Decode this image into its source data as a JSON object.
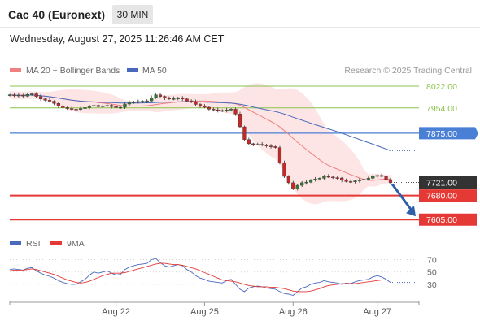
{
  "header": {
    "title": "Cac 40 (Euronext)",
    "interval": "30 MIN",
    "datetime": "Wednesday, August 27, 2025 11:26:46 AM CET"
  },
  "legend": {
    "bollinger": "MA 20 + Bollinger Bands",
    "ma50": "MA 50",
    "rsi": "RSI",
    "rsi_ma": "9MA",
    "credit": "Research © 2025 Trading Central"
  },
  "colors": {
    "bullish": "#2e7d32",
    "bearish": "#c62828",
    "candle_wick": "#333333",
    "ma20": "#f08080",
    "bollinger_fill": "#fde0e0",
    "ma50": "#4a69bd",
    "resistance_green": "#8bc34a",
    "level_blue": "#4a7fd6",
    "support_red": "#e53935",
    "current_price_box": "#333333",
    "forecast_arrow": "#2f5fa8",
    "rsi_line": "#4a69bd",
    "rsi_ma_line": "#e53935"
  },
  "chart_data": [
    {
      "type": "candlestick",
      "title": "",
      "x_ticks": [
        "Aug 22",
        "Aug 25",
        "Aug 26",
        "Aug 27"
      ],
      "ylim": [
        7575,
        8050
      ],
      "levels": [
        {
          "value": 8022.0,
          "label": "8022.00",
          "style": "green-line",
          "color": "#8bc34a"
        },
        {
          "value": 7954.0,
          "label": "7954.00",
          "style": "green-line",
          "color": "#8bc34a"
        },
        {
          "value": 7875.0,
          "label": "7875.00",
          "style": "blue-box",
          "color": "#4a7fd6"
        },
        {
          "value": 7721.0,
          "label": "7721.00",
          "style": "current-price",
          "color": "#333333"
        },
        {
          "value": 7680.0,
          "label": "7680.00",
          "style": "red-box",
          "color": "#e53935"
        },
        {
          "value": 7605.0,
          "label": "7605.00",
          "style": "red-box",
          "color": "#e53935"
        }
      ],
      "forecast": {
        "from": 7721,
        "to": 7605
      },
      "close": [
        7995,
        7992,
        7994,
        7991,
        7996,
        7998,
        7990,
        7982,
        7978,
        7975,
        7968,
        7960,
        7955,
        7952,
        7950,
        7949,
        7952,
        7955,
        7960,
        7962,
        7958,
        7960,
        7962,
        7958,
        7955,
        7956,
        7966,
        7970,
        7972,
        7974,
        7975,
        7976,
        7986,
        7995,
        7990,
        7985,
        7982,
        7983,
        7985,
        7982,
        7976,
        7973,
        7965,
        7960,
        7956,
        7950,
        7948,
        7946,
        7944,
        7948,
        7950,
        7935,
        7895,
        7855,
        7842,
        7840,
        7840,
        7838,
        7835,
        7833,
        7830,
        7782,
        7740,
        7720,
        7700,
        7712,
        7720,
        7722,
        7728,
        7732,
        7734,
        7740,
        7738,
        7736,
        7735,
        7728,
        7724,
        7723,
        7726,
        7729,
        7731,
        7734,
        7740,
        7743,
        7740,
        7730,
        7720
      ]
    },
    {
      "type": "line",
      "title": "",
      "ylim": [
        10,
        80
      ],
      "y_ticks": [
        70,
        50,
        30
      ],
      "series": [
        {
          "name": "RSI",
          "values": [
            54,
            55,
            54,
            53,
            56,
            57,
            52,
            48,
            45,
            43,
            40,
            36,
            33,
            31,
            30,
            30,
            34,
            38,
            45,
            50,
            48,
            50,
            52,
            48,
            45,
            46,
            54,
            58,
            60,
            62,
            63,
            64,
            70,
            72,
            65,
            60,
            58,
            60,
            62,
            60,
            54,
            50,
            44,
            40,
            38,
            35,
            34,
            33,
            32,
            36,
            38,
            30,
            22,
            18,
            24,
            26,
            27,
            26,
            24,
            23,
            22,
            18,
            15,
            14,
            12,
            18,
            24,
            26,
            30,
            32,
            33,
            36,
            34,
            33,
            32,
            30,
            32,
            31,
            34,
            36,
            37,
            38,
            42,
            44,
            42,
            38,
            33
          ]
        },
        {
          "name": "9MA",
          "values": [
            52,
            53,
            53,
            53,
            54,
            55,
            54,
            52,
            50,
            48,
            46,
            43,
            40,
            37,
            35,
            33,
            32,
            33,
            35,
            38,
            41,
            44,
            46,
            48,
            48,
            48,
            49,
            51,
            53,
            55,
            57,
            59,
            61,
            63,
            64,
            64,
            63,
            62,
            62,
            61,
            59,
            57,
            55,
            52,
            49,
            46,
            43,
            40,
            37,
            36,
            35,
            34,
            32,
            30,
            28,
            27,
            26,
            26,
            26,
            25,
            25,
            24,
            23,
            21,
            19,
            18,
            18,
            18,
            19,
            21,
            23,
            26,
            28,
            29,
            30,
            31,
            31,
            31,
            31,
            32,
            33,
            34,
            35,
            36,
            37,
            37,
            37
          ]
        }
      ]
    }
  ]
}
